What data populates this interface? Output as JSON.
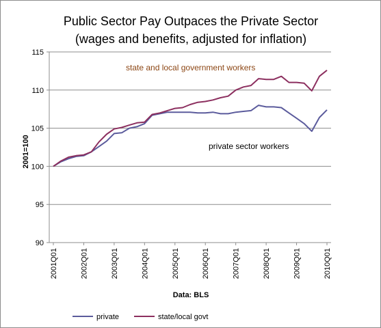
{
  "chart_data": {
    "type": "line",
    "title_line1": "Public Sector Pay Outpaces the Private Sector",
    "title_line2": "(wages and benefits, adjusted for inflation)",
    "ylabel": "2001=100",
    "xlabel": "Data: BLS",
    "ylim": [
      90,
      115
    ],
    "y_ticks": [
      "90",
      "95",
      "100",
      "105",
      "110",
      "115"
    ],
    "x_tick_labels": [
      "2001Q01",
      "2002Q01",
      "2003Q01",
      "2004Q01",
      "2005Q01",
      "2006Q01",
      "2007Q01",
      "2008Q01",
      "2009Q01",
      "2010Q01"
    ],
    "x": [
      "2001Q1",
      "2001Q2",
      "2001Q3",
      "2001Q4",
      "2002Q1",
      "2002Q2",
      "2002Q3",
      "2002Q4",
      "2003Q1",
      "2003Q2",
      "2003Q3",
      "2003Q4",
      "2004Q1",
      "2004Q2",
      "2004Q3",
      "2004Q4",
      "2005Q1",
      "2005Q2",
      "2005Q3",
      "2005Q4",
      "2006Q1",
      "2006Q2",
      "2006Q3",
      "2006Q4",
      "2007Q1",
      "2007Q2",
      "2007Q3",
      "2007Q4",
      "2008Q1",
      "2008Q2",
      "2008Q3",
      "2008Q4",
      "2009Q1",
      "2009Q2",
      "2009Q3",
      "2009Q4",
      "2010Q1"
    ],
    "grid": "horizontal",
    "legend_position": "bottom",
    "series": [
      {
        "name": "private",
        "color": "#5b5b9c",
        "values": [
          100.0,
          100.6,
          101.0,
          101.3,
          101.4,
          101.9,
          102.6,
          103.3,
          104.3,
          104.4,
          105.0,
          105.2,
          105.6,
          106.7,
          106.9,
          107.1,
          107.1,
          107.1,
          107.1,
          107.0,
          107.0,
          107.1,
          106.9,
          106.9,
          107.1,
          107.2,
          107.3,
          108.0,
          107.8,
          107.8,
          107.7,
          107.0,
          106.3,
          105.6,
          104.6,
          106.4,
          107.4
        ]
      },
      {
        "name": "state/local govt",
        "color": "#8c2f5f",
        "values": [
          100.0,
          100.7,
          101.2,
          101.4,
          101.5,
          101.9,
          103.2,
          104.2,
          104.9,
          105.1,
          105.4,
          105.7,
          105.8,
          106.8,
          107.0,
          107.3,
          107.6,
          107.7,
          108.1,
          108.4,
          108.5,
          108.7,
          109.0,
          109.2,
          110.0,
          110.4,
          110.6,
          111.5,
          111.4,
          111.4,
          111.8,
          111.0,
          111.0,
          110.9,
          109.9,
          111.8,
          112.6
        ]
      }
    ],
    "annotations": [
      {
        "text": "state and local government workers",
        "color": "#8b4513"
      },
      {
        "text": "private sector workers",
        "color": "#000000"
      }
    ]
  }
}
